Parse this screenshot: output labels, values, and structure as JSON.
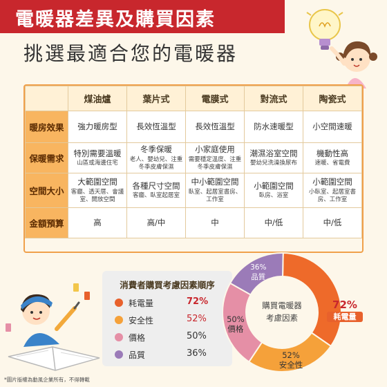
{
  "header": {
    "title": "電暖器差異及購買因素",
    "subtitle": "挑選最適合您的電暖器"
  },
  "table": {
    "columns": [
      "煤油爐",
      "葉片式",
      "電膜式",
      "對流式",
      "陶瓷式"
    ],
    "rows": [
      {
        "label": "暖房效果",
        "cells": [
          {
            "main": "強力暖房型",
            "sub": ""
          },
          {
            "main": "長效恆溫型",
            "sub": ""
          },
          {
            "main": "長效恆溫型",
            "sub": ""
          },
          {
            "main": "防水速暖型",
            "sub": ""
          },
          {
            "main": "小空間速暖",
            "sub": ""
          }
        ]
      },
      {
        "label": "保暖需求",
        "cells": [
          {
            "main": "特別需要溫暖",
            "sub": "山區或海邊住宅"
          },
          {
            "main": "冬季保暖",
            "sub": "老人、嬰幼兒、注重冬季皮膚保濕"
          },
          {
            "main": "小家庭使用",
            "sub": "需要穩定溫度、注重冬季皮膚保濕"
          },
          {
            "main": "潮濕浴室空間",
            "sub": "嬰幼兒洗澡換尿布"
          },
          {
            "main": "機動性高",
            "sub": "速暖、省電費"
          }
        ]
      },
      {
        "label": "空間大小",
        "cells": [
          {
            "main": "大範圍空間",
            "sub": "客廳、透天厝、會議室、開放空間"
          },
          {
            "main": "各種尺寸空間",
            "sub": "客廳、臥室起居室"
          },
          {
            "main": "中小範圍空間",
            "sub": "臥室、起居室書房、工作室"
          },
          {
            "main": "小範圍空間",
            "sub": "臥房、浴室"
          },
          {
            "main": "小範圍空間",
            "sub": "小臥室、起居室書房、工作室"
          }
        ]
      },
      {
        "label": "金額預算",
        "cells": [
          {
            "main": "高",
            "sub": ""
          },
          {
            "main": "高/中",
            "sub": ""
          },
          {
            "main": "中",
            "sub": ""
          },
          {
            "main": "中/低",
            "sub": ""
          },
          {
            "main": "中/低",
            "sub": ""
          }
        ]
      }
    ]
  },
  "ranking": {
    "title": "消費者購買考慮因素順序",
    "items": [
      {
        "label": "耗電量",
        "value": "72%",
        "color": "#e8612c"
      },
      {
        "label": "安全性",
        "value": "52%",
        "color": "#f5a13a"
      },
      {
        "label": "價格",
        "value": "50%",
        "color": "#e58fa6"
      },
      {
        "label": "品質",
        "value": "36%",
        "color": "#9b7bb8"
      }
    ]
  },
  "chart_data": {
    "type": "pie",
    "center_label": [
      "購買電暖器",
      "考慮因素"
    ],
    "slices": [
      {
        "label": "耗電量",
        "value": 72,
        "text": "72%",
        "color": "#ee6a2a"
      },
      {
        "label": "安全性",
        "value": 52,
        "text": "52%",
        "color": "#f5a13a"
      },
      {
        "label": "價格",
        "value": 50,
        "text": "50%",
        "color": "#e58fa6"
      },
      {
        "label": "品質",
        "value": 36,
        "text": "36%",
        "color": "#9b7bb8"
      }
    ]
  },
  "credit": "*圖片版權為動風企業所有，不得轉載",
  "colors": {
    "title_band": "#c8272d",
    "row_header": "#f8b560",
    "table_border": "#f0a04a"
  }
}
